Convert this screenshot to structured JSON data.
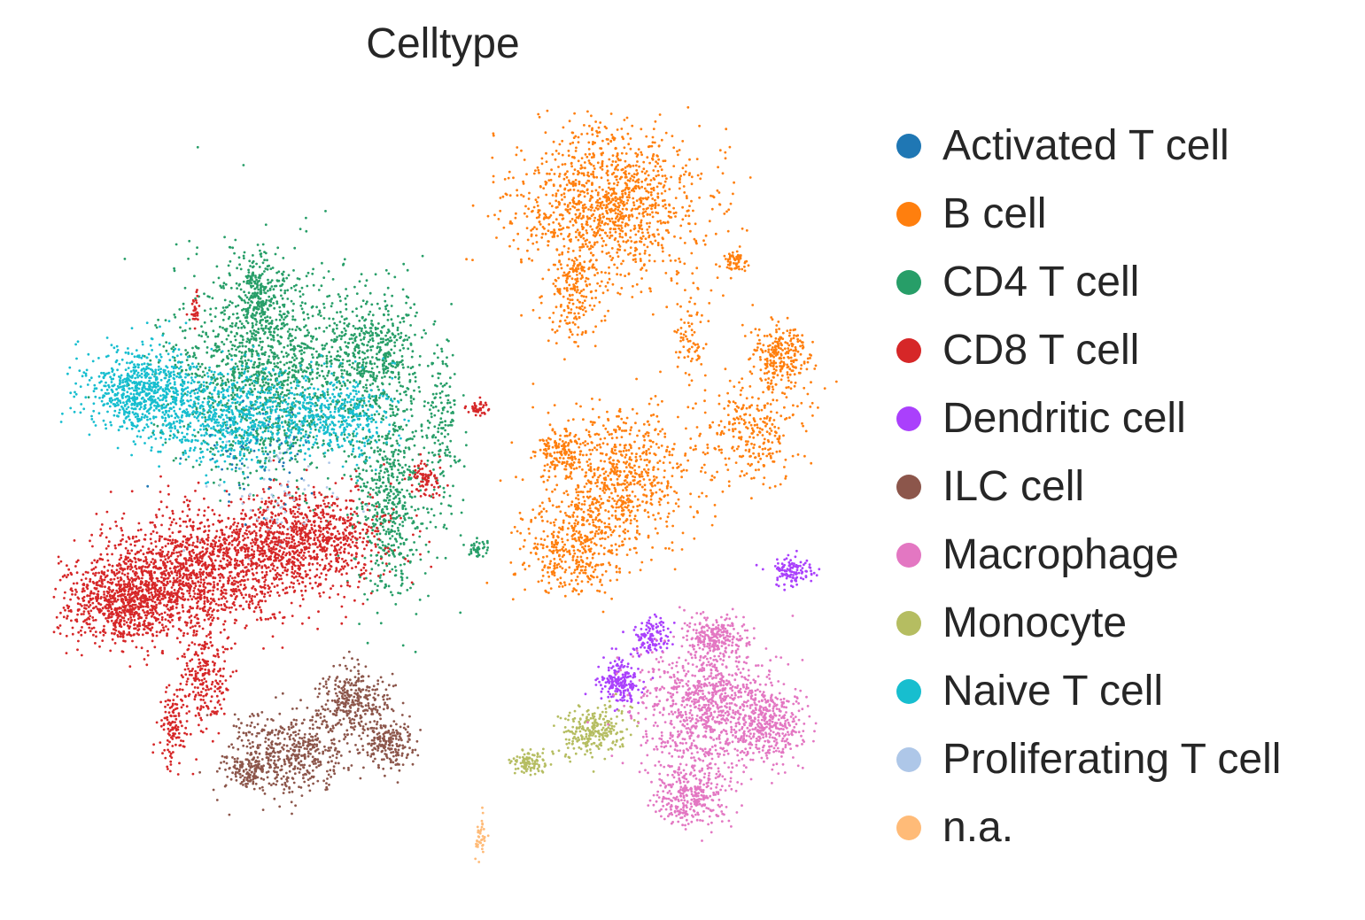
{
  "chart_data": {
    "type": "scatter",
    "title": "Celltype",
    "xlabel": "",
    "ylabel": "",
    "grid": false,
    "axes_visible": false,
    "legend_placement": "right",
    "series": [
      {
        "name": "Activated T cell",
        "color": "#1f77b4"
      },
      {
        "name": "B cell",
        "color": "#ff7f0e"
      },
      {
        "name": "CD4 T cell",
        "color": "#279e68"
      },
      {
        "name": "CD8 T cell",
        "color": "#d62728"
      },
      {
        "name": "Dendritic cell",
        "color": "#aa40fc"
      },
      {
        "name": "ILC cell",
        "color": "#8c564b"
      },
      {
        "name": "Macrophage",
        "color": "#e377c2"
      },
      {
        "name": "Monocyte",
        "color": "#b5bd61"
      },
      {
        "name": "Naive T cell",
        "color": "#17becf"
      },
      {
        "name": "Proliferating T cell",
        "color": "#aec7e8"
      },
      {
        "name": "n.a.",
        "color": "#ffbb78"
      }
    ]
  }
}
